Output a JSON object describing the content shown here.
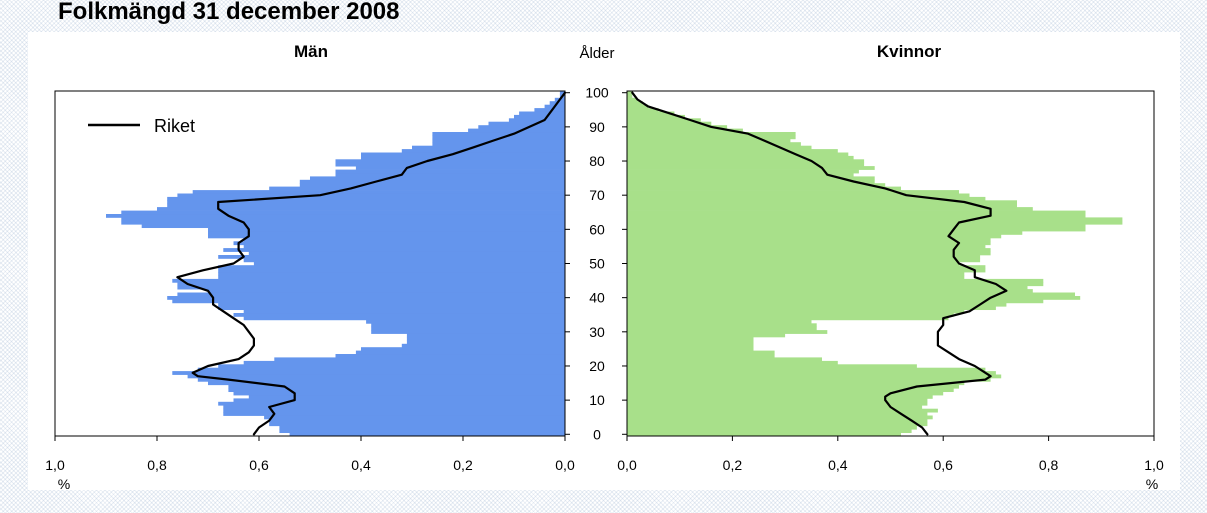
{
  "title": "Folkmängd 31 december 2008",
  "colors": {
    "men": "#6495ED",
    "women": "#A8E08A",
    "line": "#000000"
  },
  "chart_data": {
    "type": "bar",
    "subtype": "population-pyramid",
    "title": "Folkmängd 31 december 2008",
    "center_label": "Ålder",
    "left_title": "Män",
    "right_title": "Kvinnor",
    "unit_left": "%",
    "unit_right": "%",
    "legend": {
      "label": "Riket",
      "position": "top-left"
    },
    "age_axis": {
      "min": 0,
      "max": 101,
      "ticks": [
        "0",
        "10",
        "20",
        "30",
        "40",
        "50",
        "60",
        "70",
        "80",
        "90",
        "100"
      ]
    },
    "men_axis": {
      "min": 0,
      "max": 1.0,
      "ticks": [
        "1,0",
        "0,8",
        "0,6",
        "0,4",
        "0,2",
        "0,0"
      ]
    },
    "women_axis": {
      "min": 0,
      "max": 1.0,
      "ticks": [
        "0,0",
        "0,2",
        "0,4",
        "0,6",
        "0,8",
        "1,0"
      ]
    },
    "grid": false,
    "series": [
      {
        "name": "Män",
        "kind": "bars",
        "ages": [
          0,
          1,
          2,
          3,
          4,
          5,
          6,
          7,
          8,
          9,
          10,
          11,
          12,
          13,
          14,
          15,
          16,
          17,
          18,
          19,
          20,
          21,
          22,
          23,
          24,
          25,
          26,
          27,
          28,
          29,
          30,
          31,
          32,
          33,
          34,
          35,
          36,
          37,
          38,
          39,
          40,
          41,
          42,
          43,
          44,
          45,
          46,
          47,
          48,
          49,
          50,
          51,
          52,
          53,
          54,
          55,
          56,
          57,
          58,
          59,
          60,
          61,
          62,
          63,
          64,
          65,
          66,
          67,
          68,
          69,
          70,
          71,
          72,
          73,
          74,
          75,
          76,
          77,
          78,
          79,
          80,
          81,
          82,
          83,
          84,
          85,
          86,
          87,
          88,
          89,
          90,
          91,
          92,
          93,
          94,
          95,
          96,
          97,
          98,
          99,
          100
        ],
        "values": [
          0.54,
          0.56,
          0.56,
          0.58,
          0.58,
          0.59,
          0.67,
          0.67,
          0.67,
          0.68,
          0.65,
          0.62,
          0.65,
          0.66,
          0.66,
          0.7,
          0.72,
          0.74,
          0.77,
          0.72,
          0.68,
          0.63,
          0.57,
          0.45,
          0.41,
          0.4,
          0.32,
          0.31,
          0.31,
          0.31,
          0.38,
          0.38,
          0.38,
          0.39,
          0.63,
          0.65,
          0.63,
          0.68,
          0.68,
          0.77,
          0.78,
          0.76,
          0.7,
          0.76,
          0.76,
          0.77,
          0.68,
          0.68,
          0.68,
          0.68,
          0.61,
          0.63,
          0.68,
          0.62,
          0.67,
          0.63,
          0.65,
          0.63,
          0.7,
          0.7,
          0.7,
          0.83,
          0.87,
          0.87,
          0.9,
          0.87,
          0.8,
          0.78,
          0.78,
          0.78,
          0.76,
          0.73,
          0.58,
          0.52,
          0.52,
          0.5,
          0.45,
          0.45,
          0.41,
          0.45,
          0.45,
          0.4,
          0.4,
          0.32,
          0.3,
          0.26,
          0.26,
          0.26,
          0.26,
          0.19,
          0.17,
          0.15,
          0.11,
          0.1,
          0.09,
          0.06,
          0.04,
          0.03,
          0.02,
          0.01,
          0.01
        ]
      },
      {
        "name": "Kvinnor",
        "kind": "bars",
        "ages": [
          0,
          1,
          2,
          3,
          4,
          5,
          6,
          7,
          8,
          9,
          10,
          11,
          12,
          13,
          14,
          15,
          16,
          17,
          18,
          19,
          20,
          21,
          22,
          23,
          24,
          25,
          26,
          27,
          28,
          29,
          30,
          31,
          32,
          33,
          34,
          35,
          36,
          37,
          38,
          39,
          40,
          41,
          42,
          43,
          44,
          45,
          46,
          47,
          48,
          49,
          50,
          51,
          52,
          53,
          54,
          55,
          56,
          57,
          58,
          59,
          60,
          61,
          62,
          63,
          64,
          65,
          66,
          67,
          68,
          69,
          70,
          71,
          72,
          73,
          74,
          75,
          76,
          77,
          78,
          79,
          80,
          81,
          82,
          83,
          84,
          85,
          86,
          87,
          88,
          89,
          90,
          91,
          92,
          93,
          94,
          95,
          96,
          97,
          98,
          99,
          100
        ],
        "values": [
          0.52,
          0.54,
          0.55,
          0.57,
          0.57,
          0.58,
          0.57,
          0.59,
          0.56,
          0.57,
          0.57,
          0.58,
          0.6,
          0.62,
          0.63,
          0.64,
          0.69,
          0.71,
          0.7,
          0.68,
          0.55,
          0.4,
          0.37,
          0.28,
          0.28,
          0.24,
          0.24,
          0.24,
          0.24,
          0.3,
          0.38,
          0.36,
          0.36,
          0.35,
          0.61,
          0.62,
          0.64,
          0.7,
          0.72,
          0.79,
          0.86,
          0.85,
          0.77,
          0.76,
          0.79,
          0.79,
          0.64,
          0.64,
          0.68,
          0.68,
          0.63,
          0.67,
          0.67,
          0.69,
          0.69,
          0.68,
          0.69,
          0.69,
          0.71,
          0.75,
          0.87,
          0.87,
          0.94,
          0.94,
          0.87,
          0.87,
          0.77,
          0.74,
          0.74,
          0.68,
          0.65,
          0.63,
          0.52,
          0.49,
          0.47,
          0.47,
          0.43,
          0.44,
          0.47,
          0.45,
          0.45,
          0.43,
          0.42,
          0.4,
          0.35,
          0.33,
          0.31,
          0.32,
          0.32,
          0.22,
          0.19,
          0.16,
          0.14,
          0.11,
          0.09,
          0.06,
          0.04,
          0.03,
          0.02,
          0.01,
          0.01
        ]
      },
      {
        "name": "Riket",
        "kind": "line",
        "side": "men",
        "ages": [
          0,
          2,
          4,
          6,
          8,
          10,
          11,
          12,
          14,
          16,
          17,
          18,
          20,
          22,
          24,
          26,
          28,
          30,
          32,
          34,
          36,
          38,
          40,
          42,
          44,
          46,
          48,
          50,
          52,
          54,
          56,
          58,
          60,
          62,
          64,
          66,
          68,
          70,
          72,
          74,
          76,
          78,
          80,
          82,
          84,
          86,
          88,
          90,
          92,
          94,
          96,
          98,
          100
        ],
        "values": [
          0.61,
          0.6,
          0.58,
          0.57,
          0.58,
          0.53,
          0.53,
          0.53,
          0.55,
          0.66,
          0.72,
          0.73,
          0.7,
          0.64,
          0.62,
          0.61,
          0.61,
          0.62,
          0.63,
          0.65,
          0.67,
          0.69,
          0.69,
          0.7,
          0.74,
          0.76,
          0.71,
          0.65,
          0.63,
          0.64,
          0.64,
          0.62,
          0.62,
          0.63,
          0.66,
          0.68,
          0.68,
          0.48,
          0.42,
          0.37,
          0.32,
          0.31,
          0.27,
          0.22,
          0.18,
          0.14,
          0.1,
          0.07,
          0.04,
          0.03,
          0.02,
          0.01,
          0.0
        ]
      },
      {
        "name": "Riket",
        "kind": "line",
        "side": "women",
        "ages": [
          0,
          2,
          4,
          6,
          8,
          10,
          11,
          12,
          14,
          16,
          17,
          18,
          20,
          22,
          24,
          26,
          28,
          30,
          32,
          34,
          36,
          38,
          40,
          42,
          44,
          46,
          48,
          50,
          52,
          54,
          56,
          58,
          60,
          62,
          64,
          66,
          68,
          70,
          72,
          74,
          76,
          78,
          80,
          82,
          84,
          86,
          88,
          90,
          92,
          94,
          96,
          98,
          100
        ],
        "values": [
          0.57,
          0.56,
          0.54,
          0.52,
          0.5,
          0.49,
          0.49,
          0.5,
          0.55,
          0.68,
          0.69,
          0.68,
          0.66,
          0.63,
          0.61,
          0.59,
          0.59,
          0.59,
          0.6,
          0.6,
          0.65,
          0.67,
          0.69,
          0.72,
          0.7,
          0.66,
          0.66,
          0.63,
          0.62,
          0.62,
          0.63,
          0.61,
          0.62,
          0.63,
          0.69,
          0.69,
          0.64,
          0.53,
          0.49,
          0.43,
          0.38,
          0.37,
          0.35,
          0.32,
          0.29,
          0.26,
          0.23,
          0.16,
          0.12,
          0.08,
          0.04,
          0.02,
          0.01
        ]
      }
    ]
  }
}
